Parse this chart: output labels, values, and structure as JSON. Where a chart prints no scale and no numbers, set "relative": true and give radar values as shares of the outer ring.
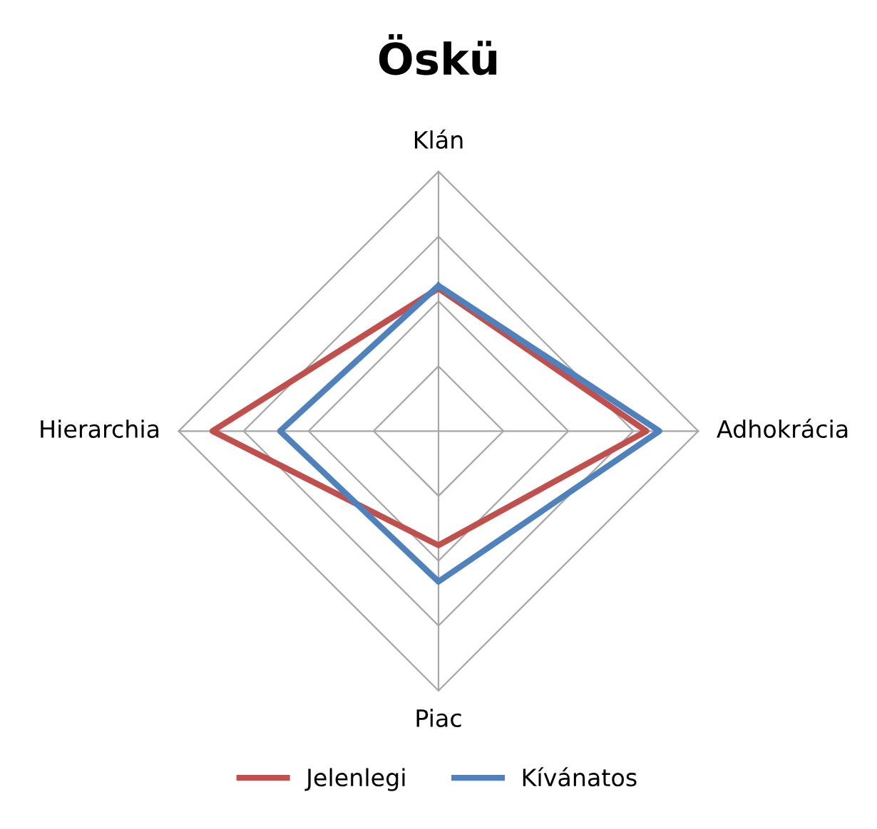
{
  "chart_data": {
    "type": "radar",
    "title": "Öskü",
    "categories": [
      "Klán",
      "Adhokrácia",
      "Piac",
      "Hierarchia"
    ],
    "relative": true,
    "grid": true,
    "legend": "bottom",
    "series": [
      {
        "name": "Jelenlegi",
        "color": "#c0504d",
        "values": [
          0.55,
          0.8,
          0.44,
          0.87
        ]
      },
      {
        "name": "Kívánatos",
        "color": "#4f81bd",
        "values": [
          0.56,
          0.85,
          0.58,
          0.61
        ]
      }
    ]
  }
}
